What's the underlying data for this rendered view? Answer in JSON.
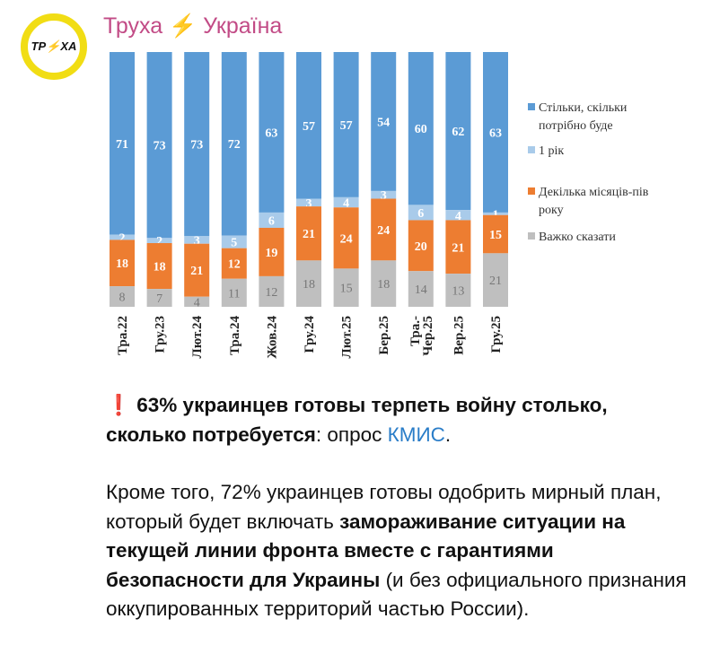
{
  "channel": {
    "name_left": "Труха",
    "name_bolt": "⚡",
    "name_right": "Україна",
    "avatar_text": "ТР⚡ХА"
  },
  "chart_data": {
    "type": "bar",
    "stacked": true,
    "categories": [
      "Тра.22",
      "Гру.23",
      "Лют.24",
      "Тра.24",
      "Жов.24",
      "Гру.24",
      "Лют.25",
      "Бер.25",
      "Тра.-Чер.25",
      "Вер.25",
      "Гру.25"
    ],
    "series": [
      {
        "name": "Стільки, скільки потрібно буде",
        "color": "#5b9bd5",
        "values": [
          71,
          73,
          73,
          72,
          63,
          57,
          57,
          54,
          60,
          62,
          63
        ]
      },
      {
        "name": "1 рік",
        "color": "#a9cbea",
        "values": [
          2,
          2,
          3,
          5,
          6,
          3,
          4,
          3,
          6,
          4,
          1
        ]
      },
      {
        "name": "Декілька місяців-пів року",
        "color": "#ed7d31",
        "values": [
          18,
          18,
          21,
          12,
          19,
          21,
          24,
          24,
          20,
          21,
          15
        ]
      },
      {
        "name": "Важко сказати",
        "color": "#bfbfbf",
        "values": [
          8,
          7,
          4,
          11,
          12,
          18,
          15,
          18,
          14,
          13,
          21
        ]
      }
    ],
    "legend_placement": "right",
    "grid": false
  },
  "post": {
    "excl": "❗",
    "headline_bold": " 63% украинцев готовы терпеть войну столько, сколько потребуется",
    "headline_rest": ": опрос ",
    "link": "КМИС",
    "headline_end": ".",
    "p2_a": "Кроме того, 72% украинцев готовы одобрить мирный план, который будет включать ",
    "p2_bold": "замораживание ситуации на текущей линии фронта вместе с гарантиями безопасности для Украины",
    "p2_c": " (и без официального признания оккупированных территорий частью России)."
  }
}
